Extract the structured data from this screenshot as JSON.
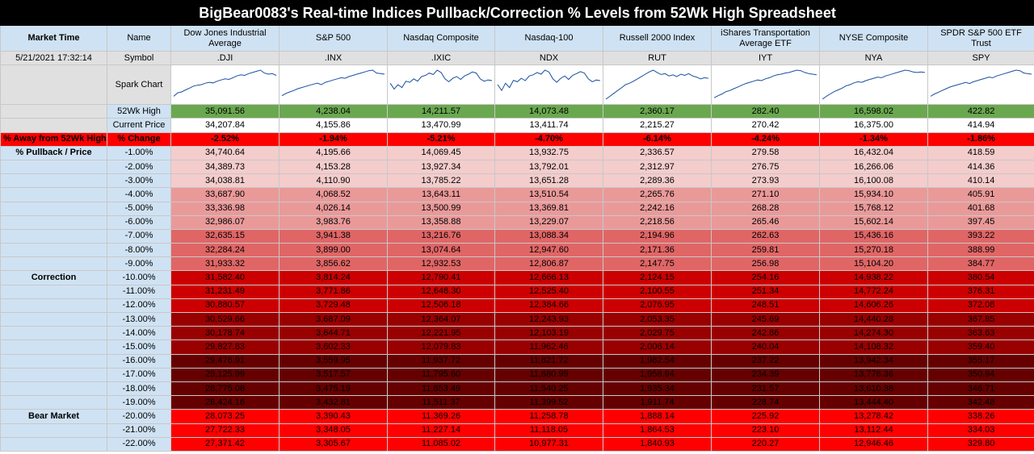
{
  "title": "BigBear0083's Real-time Indices Pullback/Correction % Levels from 52Wk High Spreadsheet",
  "labels": {
    "market_time": "Market Time",
    "name": "Name",
    "symbol": "Symbol",
    "spark_chart": "Spark Chart",
    "high_52wk": "52Wk High",
    "current_price": "Current Price",
    "away_from_high": "% Away from 52Wk High",
    "pct_change": "% Change",
    "pullback_price": "% Pullback / Price",
    "correction": "Correction",
    "bear_market": "Bear Market"
  },
  "market_time_value": "5/21/2021 17:32:14",
  "indices": [
    {
      "name": "Dow Jones Industrial Average",
      "symbol": ".DJI",
      "high": "35,091.56",
      "current": "34,207.84",
      "change": "-2.52%"
    },
    {
      "name": "S&P 500",
      "symbol": ".INX",
      "high": "4,238.04",
      "current": "4,155.86",
      "change": "-1.94%"
    },
    {
      "name": "Nasdaq Composite",
      "symbol": ".IXIC",
      "high": "14,211.57",
      "current": "13,470.99",
      "change": "-5.21%"
    },
    {
      "name": "Nasdaq-100",
      "symbol": "NDX",
      "high": "14,073.48",
      "current": "13,411.74",
      "change": "-4.70%"
    },
    {
      "name": "Russell 2000 Index",
      "symbol": "RUT",
      "high": "2,360.17",
      "current": "2,215.27",
      "change": "-6.14%"
    },
    {
      "name": "iShares Transportation Average ETF",
      "symbol": "IYT",
      "high": "282.40",
      "current": "270.42",
      "change": "-4.24%"
    },
    {
      "name": "NYSE Composite",
      "symbol": "NYA",
      "high": "16,598.02",
      "current": "16,375.00",
      "change": "-1.34%"
    },
    {
      "name": "SPDR S&P 500 ETF Trust",
      "symbol": "SPY",
      "high": "422.82",
      "current": "414.94",
      "change": "-1.86%"
    }
  ],
  "pullback_rows": [
    {
      "pct": "-1.00%",
      "tier": 1,
      "side": "",
      "values": [
        "34,740.64",
        "4,195.66",
        "14,069.45",
        "13,932.75",
        "2,336.57",
        "279.58",
        "16,432.04",
        "418.59"
      ]
    },
    {
      "pct": "-2.00%",
      "tier": 1,
      "side": "",
      "values": [
        "34,389.73",
        "4,153.28",
        "13,927.34",
        "13,792.01",
        "2,312.97",
        "276.75",
        "16,266.06",
        "414.36"
      ]
    },
    {
      "pct": "-3.00%",
      "tier": 1,
      "side": "",
      "values": [
        "34,038.81",
        "4,110.90",
        "13,785.22",
        "13,651.28",
        "2,289.36",
        "273.93",
        "16,100.08",
        "410.14"
      ]
    },
    {
      "pct": "-4.00%",
      "tier": 2,
      "side": "",
      "values": [
        "33,687.90",
        "4,068.52",
        "13,643.11",
        "13,510.54",
        "2,265.76",
        "271.10",
        "15,934.10",
        "405.91"
      ]
    },
    {
      "pct": "-5.00%",
      "tier": 2,
      "side": "",
      "values": [
        "33,336.98",
        "4,026.14",
        "13,500.99",
        "13,369.81",
        "2,242.16",
        "268.28",
        "15,768.12",
        "401.68"
      ]
    },
    {
      "pct": "-6.00%",
      "tier": 2,
      "side": "",
      "values": [
        "32,986.07",
        "3,983.76",
        "13,358.88",
        "13,229.07",
        "2,218.56",
        "265.46",
        "15,602.14",
        "397.45"
      ]
    },
    {
      "pct": "-7.00%",
      "tier": 3,
      "side": "",
      "values": [
        "32,635.15",
        "3,941.38",
        "13,216.76",
        "13,088.34",
        "2,194.96",
        "262.63",
        "15,436.16",
        "393.22"
      ]
    },
    {
      "pct": "-8.00%",
      "tier": 3,
      "side": "",
      "values": [
        "32,284.24",
        "3,899.00",
        "13,074.64",
        "12,947.60",
        "2,171.36",
        "259.81",
        "15,270.18",
        "388.99"
      ]
    },
    {
      "pct": "-9.00%",
      "tier": 3,
      "side": "",
      "values": [
        "31,933.32",
        "3,856.62",
        "12,932.53",
        "12,806.87",
        "2,147.75",
        "256.98",
        "15,104.20",
        "384.77"
      ]
    },
    {
      "pct": "-10.00%",
      "tier": 4,
      "side": "Correction",
      "values": [
        "31,582.40",
        "3,814.24",
        "12,790.41",
        "12,666.13",
        "2,124.15",
        "254.16",
        "14,938.22",
        "380.54"
      ]
    },
    {
      "pct": "-11.00%",
      "tier": 4,
      "side": "",
      "values": [
        "31,231.49",
        "3,771.86",
        "12,648.30",
        "12,525.40",
        "2,100.55",
        "251.34",
        "14,772.24",
        "376.31"
      ]
    },
    {
      "pct": "-12.00%",
      "tier": 4,
      "side": "",
      "values": [
        "30,880.57",
        "3,729.48",
        "12,506.18",
        "12,384.66",
        "2,076.95",
        "248.51",
        "14,606.26",
        "372.08"
      ]
    },
    {
      "pct": "-13.00%",
      "tier": 5,
      "side": "",
      "values": [
        "30,529.66",
        "3,687.09",
        "12,364.07",
        "12,243.93",
        "2,053.35",
        "245.69",
        "14,440.28",
        "367.85"
      ]
    },
    {
      "pct": "-14.00%",
      "tier": 5,
      "side": "",
      "values": [
        "30,178.74",
        "3,644.71",
        "12,221.95",
        "12,103.19",
        "2,029.75",
        "242.86",
        "14,274.30",
        "363.63"
      ]
    },
    {
      "pct": "-15.00%",
      "tier": 5,
      "side": "",
      "values": [
        "29,827.83",
        "3,602.33",
        "12,079.83",
        "11,962.46",
        "2,006.14",
        "240.04",
        "14,108.32",
        "359.40"
      ]
    },
    {
      "pct": "-16.00%",
      "tier": 6,
      "side": "",
      "values": [
        "29,476.91",
        "3,559.95",
        "11,937.72",
        "11,821.72",
        "1,982.54",
        "237.22",
        "13,942.34",
        "355.17"
      ]
    },
    {
      "pct": "-17.00%",
      "tier": 6,
      "side": "",
      "values": [
        "29,125.99",
        "3,517.57",
        "11,795.60",
        "11,680.99",
        "1,958.94",
        "234.39",
        "13,776.36",
        "350.94"
      ]
    },
    {
      "pct": "-18.00%",
      "tier": 6,
      "side": "",
      "values": [
        "28,775.08",
        "3,475.19",
        "11,653.49",
        "11,540.25",
        "1,935.34",
        "231.57",
        "13,610.38",
        "346.71"
      ]
    },
    {
      "pct": "-19.00%",
      "tier": 6,
      "side": "",
      "values": [
        "28,424.16",
        "3,432.81",
        "11,511.37",
        "11,399.52",
        "1,911.74",
        "228.74",
        "13,444.40",
        "342.48"
      ]
    },
    {
      "pct": "-20.00%",
      "tier": 7,
      "side": "Bear Market",
      "values": [
        "28,073.25",
        "3,390.43",
        "11,369.26",
        "11,258.78",
        "1,888.14",
        "225.92",
        "13,278.42",
        "338.26"
      ]
    },
    {
      "pct": "-21.00%",
      "tier": 7,
      "side": "",
      "values": [
        "27,722.33",
        "3,348.05",
        "11,227.14",
        "11,118.05",
        "1,864.53",
        "223.10",
        "13,112.44",
        "334.03"
      ]
    },
    {
      "pct": "-22.00%",
      "tier": 7,
      "side": "",
      "values": [
        "27,371.42",
        "3,305.67",
        "11,085.02",
        "10,977.31",
        "1,840.93",
        "220.27",
        "12,946.46",
        "329.80"
      ]
    }
  ],
  "tier_colors": {
    "1": "#f4cccc",
    "2": "#ea9999",
    "3": "#e06666",
    "4": "#cc0000",
    "5": "#990000",
    "6": "#660000",
    "7": "#ff0000"
  },
  "sparklines": [
    [
      0.1,
      0.22,
      0.25,
      0.32,
      0.38,
      0.45,
      0.48,
      0.5,
      0.55,
      0.58,
      0.56,
      0.62,
      0.66,
      0.7,
      0.68,
      0.74,
      0.8,
      0.84,
      0.82,
      0.88,
      0.92,
      0.96,
      1.0,
      0.9,
      0.86,
      0.88,
      0.82
    ],
    [
      0.12,
      0.2,
      0.25,
      0.3,
      0.36,
      0.4,
      0.44,
      0.48,
      0.52,
      0.55,
      0.5,
      0.58,
      0.62,
      0.66,
      0.7,
      0.74,
      0.72,
      0.78,
      0.82,
      0.86,
      0.9,
      0.94,
      0.98,
      1.0,
      0.9,
      0.88,
      0.86
    ],
    [
      0.55,
      0.35,
      0.5,
      0.4,
      0.62,
      0.58,
      0.7,
      0.62,
      0.78,
      0.82,
      0.9,
      0.85,
      1.0,
      0.92,
      0.7,
      0.6,
      0.72,
      0.78,
      0.68,
      0.8,
      0.86,
      0.94,
      0.9,
      0.7,
      0.62,
      0.66,
      0.64
    ],
    [
      0.5,
      0.3,
      0.55,
      0.4,
      0.65,
      0.6,
      0.72,
      0.64,
      0.8,
      0.84,
      0.92,
      0.86,
      1.0,
      0.94,
      0.7,
      0.58,
      0.72,
      0.8,
      0.68,
      0.82,
      0.88,
      0.95,
      0.9,
      0.7,
      0.6,
      0.66,
      0.64
    ],
    [
      0.0,
      0.1,
      0.2,
      0.3,
      0.4,
      0.5,
      0.55,
      0.62,
      0.7,
      0.78,
      0.86,
      0.94,
      1.0,
      0.92,
      0.85,
      0.88,
      0.8,
      0.84,
      0.78,
      0.86,
      0.82,
      0.88,
      0.8,
      0.76,
      0.7,
      0.74,
      0.72
    ],
    [
      0.05,
      0.12,
      0.18,
      0.26,
      0.3,
      0.36,
      0.42,
      0.48,
      0.54,
      0.58,
      0.62,
      0.66,
      0.64,
      0.7,
      0.74,
      0.8,
      0.84,
      0.86,
      0.9,
      0.92,
      0.96,
      1.0,
      0.98,
      0.92,
      0.88,
      0.86,
      0.84
    ],
    [
      0.0,
      0.1,
      0.18,
      0.26,
      0.32,
      0.38,
      0.46,
      0.5,
      0.56,
      0.6,
      0.58,
      0.64,
      0.68,
      0.72,
      0.76,
      0.74,
      0.8,
      0.84,
      0.88,
      0.92,
      0.96,
      1.0,
      0.98,
      0.94,
      0.92,
      0.94,
      0.92
    ],
    [
      0.1,
      0.18,
      0.24,
      0.3,
      0.36,
      0.42,
      0.46,
      0.5,
      0.54,
      0.58,
      0.54,
      0.6,
      0.64,
      0.68,
      0.72,
      0.76,
      0.74,
      0.8,
      0.84,
      0.88,
      0.92,
      0.96,
      1.0,
      0.98,
      0.9,
      0.88,
      0.86
    ]
  ]
}
